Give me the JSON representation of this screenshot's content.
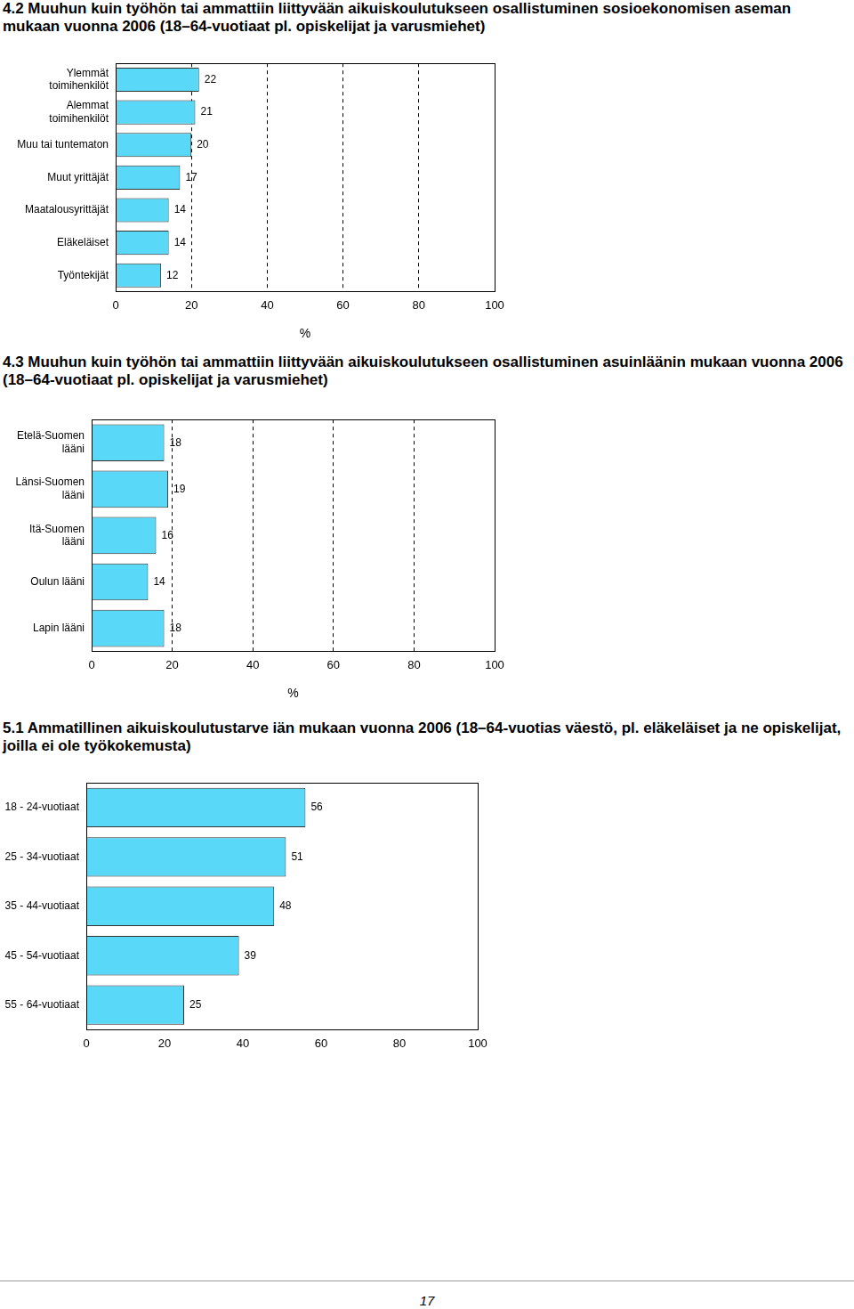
{
  "chart_data": [
    {
      "type": "bar",
      "title": "4.2 Muuhun kuin työhön tai ammattiin liittyvään aikuiskoulutukseen osallistuminen sosioekonomisen aseman mukaan vuonna 2006 (18–64-vuotiaat pl. opiskelijat ja varusmiehet)",
      "orientation": "horizontal",
      "categories": [
        "Ylemmät toimihenkilöt",
        "Alemmat toimihenkilöt",
        "Muu tai tuntematon",
        "Muut yrittäjät",
        "Maatalousyrittäjät",
        "Eläkeläiset",
        "Työntekijät"
      ],
      "values": [
        22,
        21,
        20,
        17,
        14,
        14,
        12
      ],
      "color": "#5ad8f7",
      "xlabel": "%",
      "xlim": [
        0,
        100
      ],
      "xticks": [
        0,
        20,
        40,
        60,
        80,
        100
      ],
      "grid": true,
      "data_labels": true
    },
    {
      "type": "bar",
      "title": "4.3 Muuhun kuin työhön tai ammattiin liittyvään aikuiskoulutukseen osallistuminen asuinläänin mukaan vuonna 2006 (18–64-vuotiaat pl. opiskelijat ja varusmiehet)",
      "orientation": "horizontal",
      "categories": [
        "Etelä-Suomen lääni",
        "Länsi-Suomen lääni",
        "Itä-Suomen lääni",
        "Oulun lääni",
        "Lapin lääni"
      ],
      "values": [
        18,
        19,
        16,
        14,
        18
      ],
      "color": "#5ad8f7",
      "xlabel": "%",
      "xlim": [
        0,
        100
      ],
      "xticks": [
        0,
        20,
        40,
        60,
        80,
        100
      ],
      "grid": true,
      "data_labels": true
    },
    {
      "type": "bar",
      "title": "5.1 Ammatillinen aikuiskoulutustarve iän mukaan vuonna 2006 (18–64-vuotias väestö, pl. eläkeläiset ja ne opiskelijat, joilla ei ole työkokemusta)",
      "orientation": "horizontal",
      "categories": [
        "18 - 24-vuotiaat",
        "25 - 34-vuotiaat",
        "35 - 44-vuotiaat",
        "45 - 54-vuotiaat",
        "55 - 64-vuotiaat"
      ],
      "values": [
        56,
        51,
        48,
        39,
        25
      ],
      "color": "#5ad8f7",
      "xlim": [
        0,
        100
      ],
      "xticks": [
        0,
        20,
        40,
        60,
        80,
        100
      ],
      "grid": false,
      "data_labels": true
    }
  ],
  "page_number": "17"
}
